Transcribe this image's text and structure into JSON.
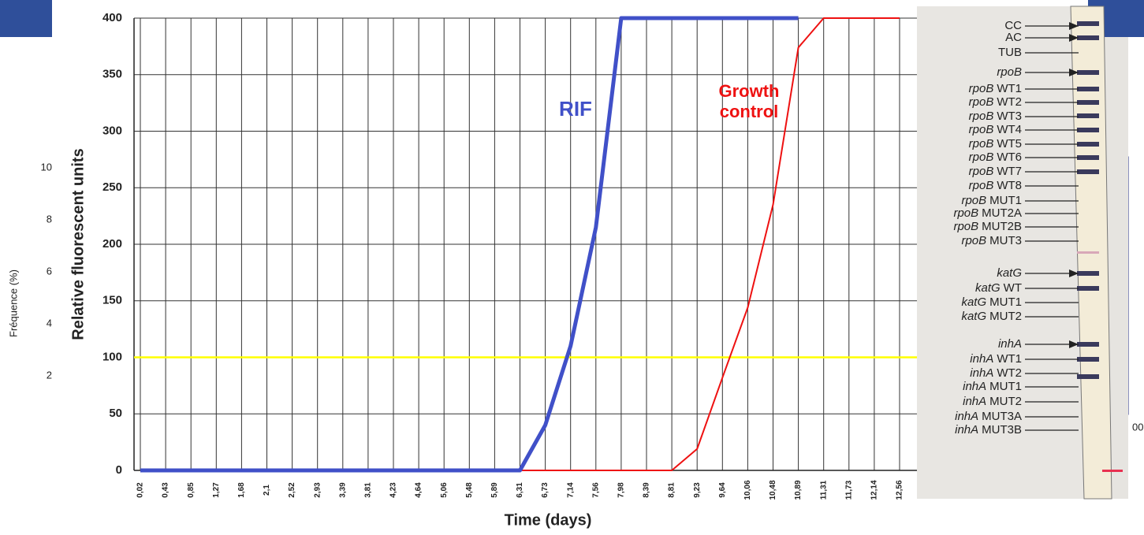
{
  "chart_data": {
    "type": "line",
    "y_label": "Relative fluorescent units",
    "x_label": "Time (days)",
    "categories": [
      "0,02",
      "0,43",
      "0,85",
      "1,27",
      "1,68",
      "2,1",
      "2,52",
      "2,93",
      "3,39",
      "3,81",
      "4,23",
      "4,64",
      "5,06",
      "5,48",
      "5,89",
      "6,31",
      "6,73",
      "7,14",
      "7,56",
      "7,98",
      "8,39",
      "8,81",
      "9,23",
      "9,64",
      "10,06",
      "10,48",
      "10,89",
      "11,31",
      "11,73",
      "12,14",
      "12,56"
    ],
    "ylim": [
      0,
      400
    ],
    "yticks": [
      0,
      50,
      100,
      150,
      200,
      250,
      300,
      350,
      400
    ],
    "grid": true,
    "threshold": {
      "value": 100,
      "color": "#ffff00"
    },
    "series": [
      {
        "name": "RIF",
        "color": "#4050c8",
        "values": [
          0,
          0,
          0,
          0,
          0,
          0,
          0,
          0,
          0,
          0,
          0,
          0,
          0,
          0,
          0,
          0,
          40,
          110,
          215,
          400,
          400,
          400,
          400,
          400,
          400,
          400,
          400,
          null,
          null,
          null,
          null
        ]
      },
      {
        "name": "Growth control",
        "color": "#ee1111",
        "values": [
          0,
          0,
          0,
          0,
          0,
          0,
          0,
          0,
          0,
          0,
          0,
          0,
          0,
          0,
          0,
          0,
          0,
          0,
          0,
          0,
          0,
          0,
          19,
          82,
          144,
          235,
          374,
          400,
          400,
          400,
          400
        ]
      }
    ]
  },
  "background": {
    "y_label": "Fréquence (%)",
    "tick_labels": [
      "10",
      "8",
      "6",
      "4",
      "2"
    ],
    "x_fragment": "00"
  },
  "strip": {
    "labels": [
      {
        "probe": "CC"
      },
      {
        "probe": "AC"
      },
      {
        "probe": "TUB"
      },
      {
        "gene": "rpoB"
      },
      {
        "gene": "rpoB",
        "probe": "WT1"
      },
      {
        "gene": "rpoB",
        "probe": "WT2"
      },
      {
        "gene": "rpoB",
        "probe": "WT3"
      },
      {
        "gene": "rpoB",
        "probe": "WT4"
      },
      {
        "gene": "rpoB",
        "probe": "WT5"
      },
      {
        "gene": "rpoB",
        "probe": "WT6"
      },
      {
        "gene": "rpoB",
        "probe": "WT7"
      },
      {
        "gene": "rpoB",
        "probe": "WT8"
      },
      {
        "gene": "rpoB",
        "probe": "MUT1"
      },
      {
        "gene": "rpoB",
        "probe": "MUT2A"
      },
      {
        "gene": "rpoB",
        "probe": "MUT2B"
      },
      {
        "gene": "rpoB",
        "probe": "MUT3"
      },
      {
        "gene": "katG"
      },
      {
        "gene": "katG",
        "probe": "WT"
      },
      {
        "gene": "katG",
        "probe": "MUT1"
      },
      {
        "gene": "katG",
        "probe": "MUT2"
      },
      {
        "gene": "inhA"
      },
      {
        "gene": "inhA",
        "probe": "WT1"
      },
      {
        "gene": "inhA",
        "probe": "WT2"
      },
      {
        "gene": "inhA",
        "probe": "MUT1"
      },
      {
        "gene": "inhA",
        "probe": "MUT2"
      },
      {
        "gene": "inhA",
        "probe": "MUT3A"
      },
      {
        "gene": "inhA",
        "probe": "MUT3B"
      }
    ]
  }
}
